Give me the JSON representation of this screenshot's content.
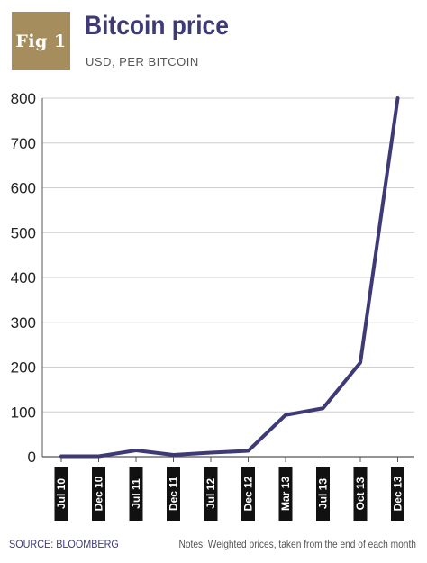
{
  "figure": {
    "badge": "Fig 1",
    "title": "Bitcoin price",
    "subtitle": "USD, PER BITCOIN",
    "source": "SOURCE: BLOOMBERG",
    "notes": "Notes: Weighted prices, taken from the end of each month"
  },
  "colors": {
    "line": "#3d3a76",
    "grid": "#cfcfcf",
    "badge": "#a58d5d",
    "xlabel_bg": "#111111"
  },
  "chart_data": {
    "type": "line",
    "title": "Bitcoin price",
    "subtitle": "USD, PER BITCOIN",
    "xlabel": "",
    "ylabel": "",
    "ylim": [
      0,
      800
    ],
    "yticks": [
      0,
      100,
      200,
      300,
      400,
      500,
      600,
      700,
      800
    ],
    "grid": true,
    "legend": "none",
    "categories": [
      "Jul 10",
      "Dec 10",
      "Jul 11",
      "Dec 11",
      "Jul 12",
      "Dec 12",
      "Mar 13",
      "Jul 13",
      "Oct 13",
      "Dec 13"
    ],
    "series": [
      {
        "values": [
          1,
          1,
          14,
          4,
          9,
          13,
          93,
          108,
          210,
          800
        ]
      }
    ]
  }
}
